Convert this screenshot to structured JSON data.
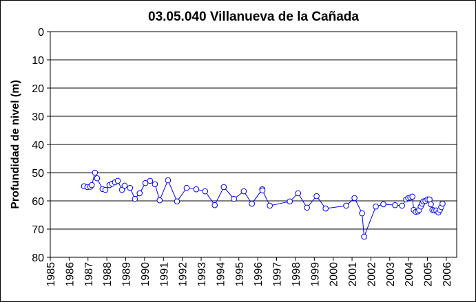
{
  "chart_data": {
    "type": "line",
    "title": "03.05.040 Villanueva de la Cañada",
    "ylabel": "Profundidad de nivel (m)",
    "color": "#0000ff",
    "marker_fill": "#ffffff",
    "x": [
      1986.79,
      1986.97,
      1987.12,
      1987.2,
      1987.37,
      1987.48,
      1987.77,
      1987.92,
      1988.14,
      1988.28,
      1988.43,
      1988.58,
      1988.8,
      1988.94,
      1989.23,
      1989.49,
      1989.74,
      1990.04,
      1990.29,
      1990.55,
      1990.8,
      1991.24,
      1991.72,
      1992.23,
      1992.74,
      1993.21,
      1993.72,
      1994.2,
      1994.74,
      1995.26,
      1995.69,
      1996.24,
      1996.25,
      1996.64,
      1997.7,
      1998.14,
      1998.61,
      1999.12,
      1999.6,
      2000.69,
      2001.13,
      2001.53,
      2001.64,
      2002.26,
      2002.66,
      2003.28,
      2003.65,
      2003.87,
      2003.98,
      2004.09,
      2004.2,
      2004.27,
      2004.38,
      2004.49,
      2004.56,
      2004.64,
      2004.71,
      2004.78,
      2004.89,
      2005.0,
      2005.11,
      2005.18,
      2005.26,
      2005.36,
      2005.47,
      2005.58,
      2005.66,
      2005.73,
      2005.8
    ],
    "values": [
      54.8,
      55.1,
      55.0,
      54.4,
      50.0,
      52.0,
      55.8,
      56.1,
      54.4,
      53.9,
      53.4,
      52.9,
      56.1,
      54.6,
      55.4,
      59.3,
      57.3,
      53.7,
      52.9,
      54.1,
      59.8,
      52.7,
      60.2,
      55.4,
      55.9,
      56.6,
      61.5,
      55.1,
      59.3,
      56.6,
      61.0,
      55.9,
      56.3,
      61.7,
      60.2,
      57.3,
      62.4,
      58.3,
      62.7,
      61.7,
      59.0,
      64.4,
      72.7,
      62.0,
      61.2,
      61.5,
      61.7,
      59.5,
      59.0,
      58.8,
      58.5,
      63.2,
      63.9,
      63.7,
      63.2,
      62.0,
      61.0,
      60.2,
      60.0,
      59.5,
      59.5,
      61.2,
      63.2,
      63.4,
      63.4,
      64.1,
      63.2,
      62.2,
      61.0
    ],
    "xlim": [
      1985,
      2006.55
    ],
    "xticks": [
      1985,
      1986,
      1987,
      1988,
      1989,
      1990,
      1991,
      1992,
      1993,
      1994,
      1995,
      1996,
      1997,
      1998,
      1999,
      2000,
      2001,
      2002,
      2003,
      2004,
      2005,
      2006
    ],
    "ylim": [
      0,
      80
    ],
    "yticks": [
      0,
      10,
      20,
      30,
      40,
      50,
      60,
      70,
      80
    ],
    "y_inverted": true,
    "grid": true
  }
}
